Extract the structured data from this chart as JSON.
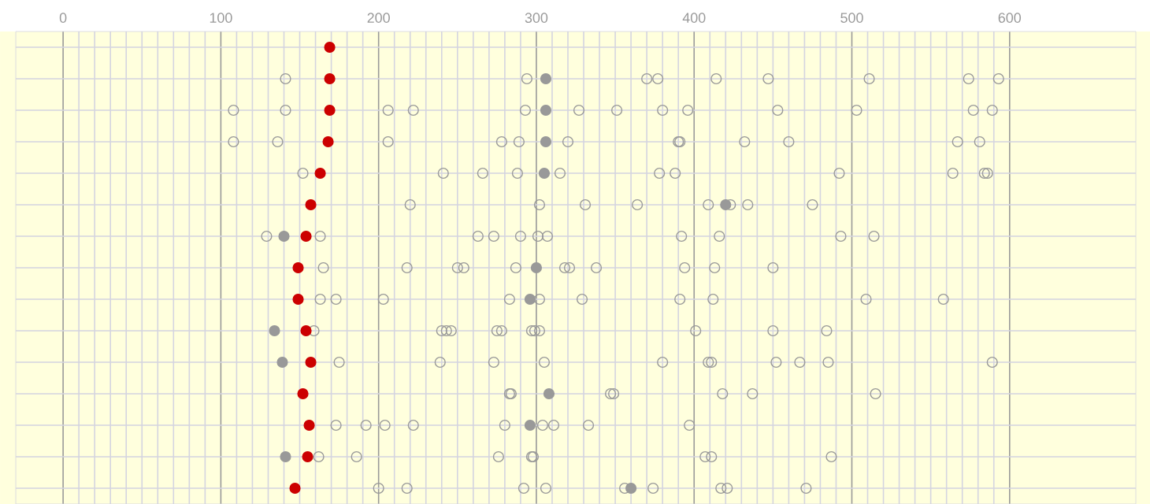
{
  "chart_data": {
    "type": "scatter",
    "orientation": "horizontal",
    "categories": [
      null,
      null,
      null,
      null,
      null,
      null,
      null,
      null,
      null,
      null,
      null,
      null,
      null,
      null,
      null
    ],
    "xlim": [
      -30,
      680
    ],
    "xticks": [
      0,
      100,
      200,
      300,
      400,
      500,
      600
    ],
    "grid": true,
    "marker": "circle",
    "series": [
      {
        "color": "#999999",
        "values": [
          null,
          141,
          108,
          108,
          152,
          220,
          129,
          165,
          163,
          159,
          175,
          283,
          173,
          162,
          200
        ]
      },
      {
        "color": "#999999",
        "values": [
          null,
          294,
          141,
          136,
          241,
          302,
          163,
          218,
          173,
          240,
          239,
          284,
          192,
          186,
          218
        ]
      },
      {
        "color": "#999999",
        "values": [
          null,
          370,
          206,
          206,
          266,
          331,
          263,
          250,
          203,
          243,
          273,
          347,
          204,
          276,
          292
        ]
      },
      {
        "color": "#999999",
        "values": [
          null,
          377,
          222,
          278,
          288,
          364,
          273,
          254,
          283,
          246,
          305,
          349,
          222,
          297,
          306
        ]
      },
      {
        "color": "#999999",
        "values": [
          null,
          414,
          293,
          289,
          315,
          409,
          290,
          287,
          302,
          275,
          380,
          418,
          280,
          298,
          356
        ]
      },
      {
        "color": "#999999",
        "values": [
          null,
          447,
          327,
          320,
          378,
          423,
          301,
          318,
          329,
          278,
          409,
          437,
          304,
          407,
          374
        ]
      },
      {
        "color": "#999999",
        "values": [
          null,
          511,
          351,
          390,
          388,
          434,
          307,
          321,
          391,
          297,
          411,
          515,
          311,
          411,
          417
        ]
      },
      {
        "color": "#999999",
        "values": [
          null,
          574,
          380,
          391,
          492,
          475,
          392,
          338,
          412,
          299,
          452,
          null,
          333,
          487,
          421
        ]
      },
      {
        "color": "#999999",
        "values": [
          null,
          593,
          396,
          432,
          564,
          null,
          416,
          394,
          509,
          302,
          467,
          null,
          397,
          null,
          471
        ]
      },
      {
        "color": "#999999",
        "values": [
          null,
          null,
          453,
          460,
          584,
          null,
          493,
          413,
          558,
          401,
          485,
          null,
          null,
          null,
          null
        ]
      },
      {
        "color": "#999999",
        "values": [
          null,
          null,
          503,
          567,
          586,
          null,
          514,
          450,
          null,
          450,
          589,
          null,
          null,
          null,
          null
        ]
      },
      {
        "color": "#999999",
        "values": [
          null,
          null,
          577,
          581,
          null,
          null,
          null,
          null,
          null,
          484,
          null,
          null,
          null,
          null,
          null
        ]
      },
      {
        "color": "#999999",
        "values": [
          null,
          null,
          589,
          null,
          null,
          null,
          null,
          null,
          null,
          null,
          null,
          null,
          null,
          null,
          null
        ]
      },
      {
        "color": "#999999",
        "values": [
          null,
          306,
          306,
          306,
          305,
          420,
          140,
          300,
          296,
          134,
          139,
          308,
          296,
          141,
          360
        ]
      },
      {
        "color": "#cc0000",
        "values": [
          169,
          169,
          169,
          168,
          163,
          157,
          154,
          149,
          149,
          154,
          157,
          152,
          156,
          155,
          147
        ]
      }
    ]
  }
}
